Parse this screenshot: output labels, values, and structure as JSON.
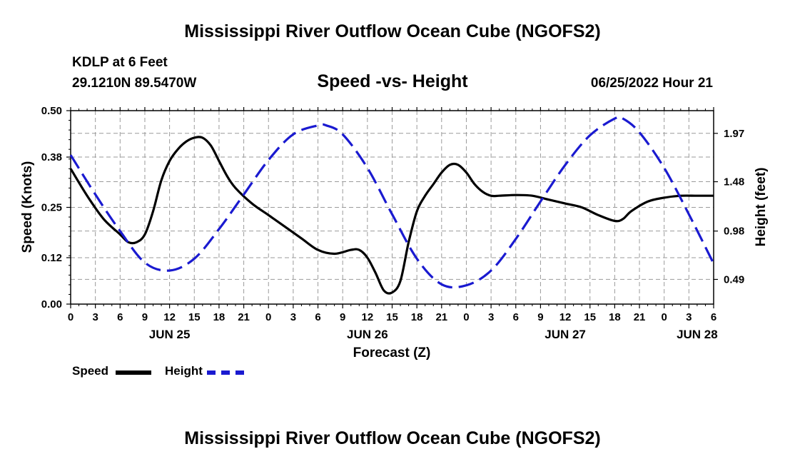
{
  "page": {
    "title": "Mississippi River Outflow Ocean Cube (NGOFS2)",
    "footer_title": "Mississippi River Outflow Ocean Cube (NGOFS2)",
    "station": "KDLP at 6 Feet",
    "coords": "29.1210N  89.5470W",
    "subtitle": "Speed -vs- Height",
    "timestamp": "06/25/2022 Hour 21"
  },
  "legend": {
    "speed_label": "Speed",
    "height_label": "Height"
  },
  "colors": {
    "speed": "#000000",
    "height": "#1a1ad0",
    "grid": "#9a9a9a"
  },
  "chart_data": {
    "type": "line",
    "title": "Speed -vs- Height",
    "xlabel": "Forecast (Z)",
    "ylabel": "Speed (Knots)",
    "y2label": "Height (feet)",
    "xlim": [
      0,
      78
    ],
    "ylim": [
      0,
      0.5
    ],
    "y2lim": [
      0.24,
      2.2
    ],
    "yticks": [
      0.0,
      0.12,
      0.25,
      0.38,
      0.5
    ],
    "ytick_labels": [
      "0.00",
      "0.12",
      "0.25",
      "0.38",
      "0.50"
    ],
    "y2ticks": [
      0.49,
      0.98,
      1.48,
      1.97
    ],
    "y2tick_labels": [
      "0.49",
      "0.98",
      "1.48",
      "1.97"
    ],
    "xticks": [
      0,
      3,
      6,
      9,
      12,
      15,
      18,
      21,
      24,
      27,
      30,
      33,
      36,
      39,
      42,
      45,
      48,
      51,
      54,
      57,
      60,
      63,
      66,
      69,
      72,
      75,
      78
    ],
    "xtick_labels": [
      "0",
      "3",
      "6",
      "9",
      "12",
      "15",
      "18",
      "21",
      "0",
      "3",
      "6",
      "9",
      "12",
      "15",
      "18",
      "21",
      "0",
      "3",
      "6",
      "9",
      "12",
      "15",
      "18",
      "21",
      "0",
      "3",
      "6"
    ],
    "date_labels": [
      {
        "x": 12,
        "label": "JUN 25"
      },
      {
        "x": 36,
        "label": "JUN 26"
      },
      {
        "x": 60,
        "label": "JUN 27"
      },
      {
        "x": 76,
        "label": "JUN 28"
      }
    ],
    "legend_position": "bottom-left",
    "series": [
      {
        "name": "Speed",
        "axis": "left",
        "style": "solid",
        "x": [
          0,
          2,
          4,
          6,
          7,
          8,
          9,
          10,
          11,
          12,
          13,
          14,
          15,
          16,
          17,
          18,
          19,
          20,
          22,
          24,
          26,
          28,
          30,
          32,
          34,
          35,
          36,
          37,
          38,
          39,
          40,
          41,
          42,
          43,
          44,
          45,
          46,
          47,
          48,
          49,
          50,
          51,
          52,
          54,
          56,
          58,
          60,
          62,
          64,
          66,
          67,
          68,
          70,
          72,
          74,
          76,
          78
        ],
        "y": [
          0.35,
          0.28,
          0.22,
          0.18,
          0.16,
          0.16,
          0.18,
          0.24,
          0.32,
          0.37,
          0.4,
          0.42,
          0.43,
          0.43,
          0.41,
          0.37,
          0.33,
          0.3,
          0.26,
          0.23,
          0.2,
          0.17,
          0.14,
          0.13,
          0.14,
          0.14,
          0.12,
          0.08,
          0.035,
          0.03,
          0.06,
          0.16,
          0.24,
          0.28,
          0.31,
          0.34,
          0.36,
          0.36,
          0.34,
          0.31,
          0.29,
          0.28,
          0.28,
          0.282,
          0.28,
          0.27,
          0.26,
          0.25,
          0.23,
          0.215,
          0.22,
          0.24,
          0.265,
          0.275,
          0.28,
          0.28,
          0.28
        ]
      },
      {
        "name": "Height",
        "axis": "right",
        "style": "dashed",
        "x": [
          0,
          3,
          6,
          9,
          12,
          15,
          18,
          21,
          24,
          27,
          30,
          31,
          33,
          36,
          39,
          42,
          45,
          48,
          51,
          54,
          57,
          60,
          63,
          66,
          67,
          69,
          72,
          75,
          78
        ],
        "y": [
          1.75,
          1.35,
          0.98,
          0.66,
          0.58,
          0.7,
          1.0,
          1.35,
          1.7,
          1.96,
          2.05,
          2.05,
          1.96,
          1.62,
          1.15,
          0.7,
          0.44,
          0.43,
          0.58,
          0.9,
          1.28,
          1.65,
          1.95,
          2.12,
          2.12,
          1.98,
          1.62,
          1.15,
          0.65
        ]
      }
    ]
  }
}
